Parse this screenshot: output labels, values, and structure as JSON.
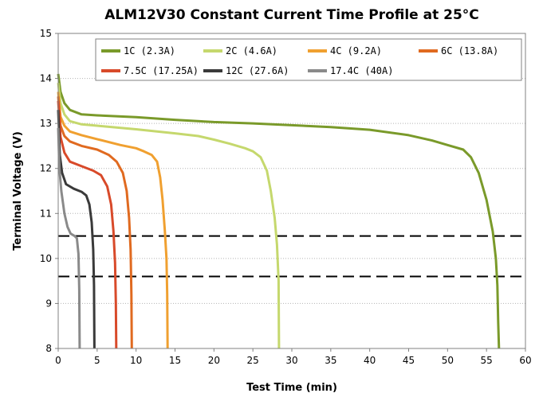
{
  "chart_data": {
    "type": "line",
    "title": "ALM12V30 Constant Current Time Profile at 25°C",
    "xlabel": "Test Time (min)",
    "ylabel": "Terminal Voltage (V)",
    "xlim": [
      0,
      60
    ],
    "ylim": [
      8,
      15
    ],
    "xticks": [
      "0",
      "5",
      "10",
      "15",
      "20",
      "25",
      "30",
      "35",
      "40",
      "45",
      "50",
      "55",
      "60"
    ],
    "yticks": [
      "8",
      "9",
      "10",
      "11",
      "12",
      "13",
      "14",
      "15"
    ],
    "grid": "horizontal",
    "legend_position": "top",
    "reference_lines": [
      {
        "y": 10.5,
        "style": "dashed",
        "color": "#000000"
      },
      {
        "y": 9.6,
        "style": "dashed",
        "color": "#000000"
      }
    ],
    "series": [
      {
        "name": "1C (2.3A)",
        "color": "#7a9a2a",
        "points": [
          [
            0,
            14.1
          ],
          [
            0.3,
            13.7
          ],
          [
            0.8,
            13.45
          ],
          [
            1.5,
            13.3
          ],
          [
            3,
            13.2
          ],
          [
            5,
            13.18
          ],
          [
            10,
            13.14
          ],
          [
            15,
            13.08
          ],
          [
            20,
            13.03
          ],
          [
            25,
            13.0
          ],
          [
            30,
            12.96
          ],
          [
            35,
            12.92
          ],
          [
            40,
            12.86
          ],
          [
            45,
            12.74
          ],
          [
            48,
            12.62
          ],
          [
            50,
            12.52
          ],
          [
            52,
            12.42
          ],
          [
            53,
            12.25
          ],
          [
            54,
            11.9
          ],
          [
            55,
            11.3
          ],
          [
            55.8,
            10.6
          ],
          [
            56.2,
            10.0
          ],
          [
            56.4,
            9.4
          ],
          [
            56.5,
            8.6
          ],
          [
            56.6,
            8.0
          ]
        ]
      },
      {
        "name": "2C (4.6A)",
        "color": "#c5d86d",
        "points": [
          [
            0,
            13.9
          ],
          [
            0.3,
            13.45
          ],
          [
            0.8,
            13.2
          ],
          [
            1.5,
            13.05
          ],
          [
            3,
            12.98
          ],
          [
            5,
            12.95
          ],
          [
            10,
            12.87
          ],
          [
            15,
            12.78
          ],
          [
            18,
            12.72
          ],
          [
            20,
            12.64
          ],
          [
            22,
            12.55
          ],
          [
            24,
            12.45
          ],
          [
            25,
            12.38
          ],
          [
            26,
            12.25
          ],
          [
            26.8,
            11.95
          ],
          [
            27.3,
            11.5
          ],
          [
            27.8,
            10.9
          ],
          [
            28.1,
            10.3
          ],
          [
            28.3,
            9.5
          ],
          [
            28.35,
            8.0
          ]
        ]
      },
      {
        "name": "4C (9.2A)",
        "color": "#f0a030",
        "points": [
          [
            0,
            13.7
          ],
          [
            0.3,
            13.15
          ],
          [
            0.8,
            12.95
          ],
          [
            1.5,
            12.82
          ],
          [
            3,
            12.74
          ],
          [
            5,
            12.65
          ],
          [
            8,
            12.52
          ],
          [
            10,
            12.45
          ],
          [
            11,
            12.38
          ],
          [
            12,
            12.3
          ],
          [
            12.7,
            12.15
          ],
          [
            13.1,
            11.8
          ],
          [
            13.4,
            11.3
          ],
          [
            13.7,
            10.6
          ],
          [
            13.9,
            10.0
          ],
          [
            14.0,
            9.2
          ],
          [
            14.05,
            8.0
          ]
        ]
      },
      {
        "name": "6C (13.8A)",
        "color": "#e06a20",
        "points": [
          [
            0,
            13.6
          ],
          [
            0.3,
            12.95
          ],
          [
            0.8,
            12.72
          ],
          [
            1.5,
            12.6
          ],
          [
            3,
            12.5
          ],
          [
            5,
            12.42
          ],
          [
            6.5,
            12.3
          ],
          [
            7.5,
            12.15
          ],
          [
            8.3,
            11.9
          ],
          [
            8.8,
            11.5
          ],
          [
            9.1,
            10.9
          ],
          [
            9.3,
            10.2
          ],
          [
            9.4,
            9.2
          ],
          [
            9.45,
            8.0
          ]
        ]
      },
      {
        "name": "7.5C (17.25A)",
        "color": "#d84a2a",
        "points": [
          [
            0,
            13.5
          ],
          [
            0.3,
            12.7
          ],
          [
            0.8,
            12.35
          ],
          [
            1.5,
            12.15
          ],
          [
            3,
            12.05
          ],
          [
            4.5,
            11.95
          ],
          [
            5.5,
            11.85
          ],
          [
            6.3,
            11.6
          ],
          [
            6.8,
            11.2
          ],
          [
            7.1,
            10.6
          ],
          [
            7.3,
            9.9
          ],
          [
            7.4,
            9.0
          ],
          [
            7.45,
            8.0
          ]
        ]
      },
      {
        "name": "12C (27.6A)",
        "color": "#3a3a3a",
        "points": [
          [
            0,
            13.3
          ],
          [
            0.2,
            12.3
          ],
          [
            0.5,
            11.9
          ],
          [
            1,
            11.65
          ],
          [
            2,
            11.55
          ],
          [
            3,
            11.48
          ],
          [
            3.6,
            11.4
          ],
          [
            4.0,
            11.2
          ],
          [
            4.3,
            10.8
          ],
          [
            4.5,
            10.2
          ],
          [
            4.6,
            9.4
          ],
          [
            4.65,
            8.0
          ]
        ]
      },
      {
        "name": "17.4C (40A)",
        "color": "#8a8a8a",
        "points": [
          [
            0,
            12.9
          ],
          [
            0.15,
            12.0
          ],
          [
            0.4,
            11.5
          ],
          [
            0.8,
            11.0
          ],
          [
            1.2,
            10.7
          ],
          [
            1.6,
            10.55
          ],
          [
            2.1,
            10.5
          ],
          [
            2.4,
            10.45
          ],
          [
            2.6,
            10.1
          ],
          [
            2.7,
            9.3
          ],
          [
            2.75,
            8.0
          ]
        ]
      }
    ]
  }
}
